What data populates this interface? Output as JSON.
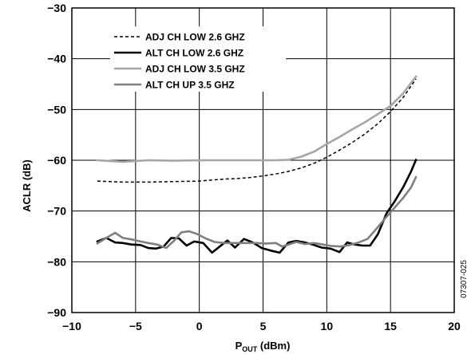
{
  "chart_data": {
    "type": "line",
    "xlabel_main": "P",
    "xlabel_sub": "OUT",
    "xlabel_rest": " (dBm)",
    "ylabel": "ACLR (dB)",
    "xlim": [
      -10,
      20
    ],
    "ylim": [
      -90,
      -30
    ],
    "xticks": [
      -10,
      -5,
      0,
      5,
      10,
      15,
      20
    ],
    "yticks": [
      -90,
      -80,
      -70,
      -60,
      -50,
      -40,
      -30
    ],
    "xtick_labels": [
      "−10",
      "−5",
      "0",
      "5",
      "10",
      "15",
      "20"
    ],
    "ytick_labels": [
      "−90",
      "−80",
      "−70",
      "−60",
      "−50",
      "−40",
      "−30"
    ],
    "grid": true,
    "legend_position": "top-left",
    "figure_id": "07307-025",
    "series": [
      {
        "name": "ADJ CH LOW 2.6 GHZ",
        "color": "#000000",
        "style": "dashed",
        "x": [
          -8,
          -6,
          -4,
          -2,
          0,
          1,
          2,
          3,
          4,
          5,
          6,
          7,
          8,
          9,
          10,
          11,
          12,
          13,
          14,
          15,
          16,
          17
        ],
        "y": [
          -64.1,
          -64.3,
          -64.3,
          -64.2,
          -64.1,
          -63.9,
          -63.7,
          -63.6,
          -63.4,
          -63.1,
          -62.7,
          -62.2,
          -61.5,
          -60.6,
          -59.4,
          -58.0,
          -56.5,
          -54.8,
          -52.8,
          -50.4,
          -47.6,
          -44.0
        ]
      },
      {
        "name": "ALT CH LOW 2.6 GHZ",
        "color": "#000000",
        "style": "solid",
        "x": [
          -8,
          -7.3,
          -6.6,
          -6,
          -5.3,
          -4.6,
          -4,
          -3.4,
          -2.8,
          -2.2,
          -1.6,
          -1,
          -0.4,
          0.3,
          1,
          1.6,
          2.2,
          2.8,
          3.5,
          4.2,
          4.9,
          5.6,
          6.3,
          7,
          7.6,
          8.3,
          9,
          9.6,
          10.3,
          11,
          11.6,
          12.2,
          12.8,
          13.4,
          14,
          14.7,
          15.3,
          16,
          16.6,
          17
        ],
        "y": [
          -76.0,
          -75.3,
          -76.2,
          -76.3,
          -76.6,
          -76.7,
          -77.3,
          -77.4,
          -77.0,
          -75.3,
          -75.4,
          -76.8,
          -76.0,
          -76.3,
          -78.2,
          -77.0,
          -75.8,
          -77.2,
          -75.5,
          -76.2,
          -77.3,
          -77.8,
          -78.2,
          -76.2,
          -75.9,
          -76.2,
          -76.7,
          -77.2,
          -77.4,
          -78.1,
          -76.2,
          -76.6,
          -76.8,
          -76.8,
          -74.6,
          -70.4,
          -68.2,
          -65.3,
          -62.3,
          -59.9
        ]
      },
      {
        "name": "ADJ CH LOW 3.5 GHZ",
        "color": "#a6a6a6",
        "style": "solid",
        "x": [
          -8,
          -6,
          -4,
          -2,
          0,
          2,
          4,
          6,
          7,
          8,
          9,
          10,
          11,
          12,
          13,
          14,
          15,
          16,
          17
        ],
        "y": [
          -60.0,
          -60.3,
          -60.0,
          -60.1,
          -60.0,
          -60.0,
          -60.0,
          -60.0,
          -59.9,
          -59.3,
          -58.3,
          -56.8,
          -55.4,
          -53.9,
          -52.5,
          -50.9,
          -49.3,
          -46.8,
          -43.5
        ]
      },
      {
        "name": "ALT CH UP 3.5 GHZ",
        "color": "#7f7f7f",
        "style": "solid",
        "x": [
          -8,
          -7.3,
          -6.6,
          -6,
          -5.3,
          -4.6,
          -4,
          -3.3,
          -2.6,
          -2,
          -1.4,
          -0.8,
          -0.2,
          0.5,
          1.2,
          2,
          2.8,
          3.6,
          4.4,
          5.2,
          6,
          6.5,
          7,
          7.6,
          8.3,
          9,
          9.7,
          10.4,
          11.1,
          11.8,
          12.5,
          13.2,
          13.9,
          14.6,
          15.3,
          16,
          16.6,
          17
        ],
        "y": [
          -76.4,
          -75.3,
          -74.3,
          -75.3,
          -75.6,
          -76.0,
          -76.3,
          -76.6,
          -77.3,
          -75.9,
          -74.2,
          -74.0,
          -74.5,
          -75.4,
          -76.1,
          -76.3,
          -76.3,
          -76.3,
          -76.3,
          -76.4,
          -76.3,
          -77.0,
          -76.6,
          -76.1,
          -76.5,
          -76.3,
          -76.6,
          -76.9,
          -77.0,
          -76.7,
          -76.2,
          -75.5,
          -73.5,
          -71.4,
          -69.4,
          -67.4,
          -65.4,
          -63.3
        ]
      }
    ]
  }
}
